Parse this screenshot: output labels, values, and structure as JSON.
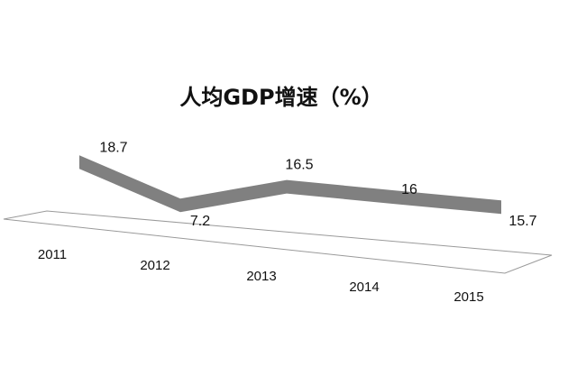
{
  "chart_data": {
    "type": "line",
    "title": "人均GDP增速（%）",
    "categories": [
      "2011",
      "2012",
      "2013",
      "2014",
      "2015"
    ],
    "values": [
      18.7,
      7.2,
      16.5,
      16,
      15.7
    ],
    "value_labels": [
      "18.7",
      "7.2",
      "16.5",
      "16",
      "15.7"
    ],
    "line_color": "#808080",
    "floor_color": "#9a9a9a",
    "grid": false,
    "legend": "none"
  }
}
